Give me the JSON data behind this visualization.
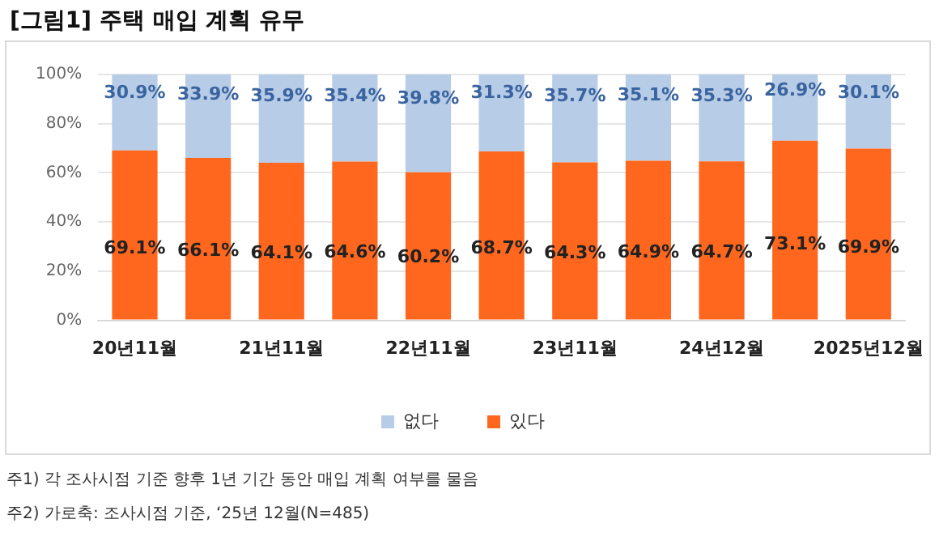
{
  "chart_data": {
    "type": "bar",
    "title": "[그림1] 주택 매입 계획 유무",
    "stacked": true,
    "categories": [
      "20년11월",
      null,
      "21년11월",
      null,
      "22년11월",
      null,
      "23년11월",
      null,
      "24년12월",
      null,
      "2025년12월"
    ],
    "series": [
      {
        "name": "있다",
        "color": "#ff671f",
        "values": [
          69.1,
          66.1,
          64.1,
          64.6,
          60.2,
          68.7,
          64.3,
          64.9,
          64.7,
          73.1,
          69.9
        ],
        "value_labels": [
          "69.1%",
          "66.1%",
          "64.1%",
          "64.6%",
          "60.2%",
          "68.7%",
          "64.3%",
          "64.9%",
          "64.7%",
          "73.1%",
          "69.9%"
        ]
      },
      {
        "name": "없다",
        "color": "#b7cce6",
        "values": [
          30.9,
          33.9,
          35.9,
          35.4,
          39.8,
          31.3,
          35.7,
          35.1,
          35.3,
          26.9,
          30.1
        ],
        "value_labels": [
          "30.9%",
          "33.9%",
          "35.9%",
          "35.4%",
          "39.8%",
          "31.3%",
          "35.7%",
          "35.1%",
          "35.3%",
          "26.9%",
          "30.1%"
        ]
      }
    ],
    "ylim": [
      0,
      100
    ],
    "yticks": [
      {
        "value": 0,
        "label": "0%"
      },
      {
        "value": 20,
        "label": "20%"
      },
      {
        "value": 40,
        "label": "40%"
      },
      {
        "value": 60,
        "label": "60%"
      },
      {
        "value": 80,
        "label": "80%"
      },
      {
        "value": 100,
        "label": "100%"
      }
    ],
    "grid": "y",
    "legend": "bottom",
    "annotations": [
      "주1) 각 조사시점 기준 향후 1년 기간 동안 매입 계획 여부를 물음",
      "주2) 가로축: 조사시점 기준, ‘25년 12월(N=485)"
    ]
  }
}
